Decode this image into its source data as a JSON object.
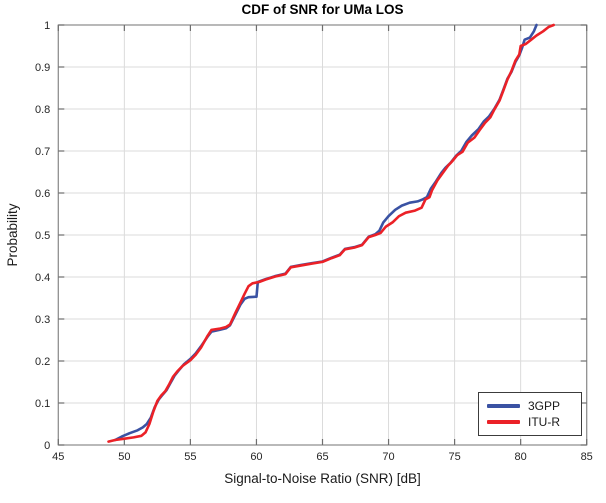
{
  "chart_data": {
    "type": "line",
    "title": "CDF of SNR for UMa LOS",
    "xlabel": "Signal-to-Noise Ratio (SNR) [dB]",
    "ylabel": "Probability",
    "xlim": [
      45,
      85
    ],
    "ylim": [
      0,
      1
    ],
    "xticks": [
      45,
      50,
      55,
      60,
      65,
      70,
      75,
      80,
      85
    ],
    "xtick_labels": [
      "45",
      "50",
      "55",
      "60",
      "65",
      "70",
      "75",
      "80",
      "85"
    ],
    "yticks": [
      0,
      0.1,
      0.2,
      0.3,
      0.4,
      0.5,
      0.6,
      0.7,
      0.8,
      0.9,
      1
    ],
    "ytick_labels": [
      "0",
      "0.1",
      "0.2",
      "0.3",
      "0.4",
      "0.5",
      "0.6",
      "0.7",
      "0.8",
      "0.9",
      "1"
    ],
    "grid": true,
    "legend_position": "bottom-right",
    "colors": {
      "grid": "#dbdbdb",
      "axis_box": "#8a8a8a",
      "tick_mark": "#6e6e6e",
      "tick_label": "#262626",
      "series_3gpp": "#3a52a3",
      "series_itur": "#eb2127"
    },
    "series": [
      {
        "name": "3GPP",
        "color": "#3a52a3",
        "points": [
          [
            49.3,
            0.012
          ],
          [
            49.8,
            0.02
          ],
          [
            50.4,
            0.028
          ],
          [
            51.0,
            0.035
          ],
          [
            51.4,
            0.042
          ],
          [
            51.7,
            0.05
          ],
          [
            52.0,
            0.065
          ],
          [
            52.3,
            0.09
          ],
          [
            52.6,
            0.108
          ],
          [
            52.9,
            0.12
          ],
          [
            53.2,
            0.131
          ],
          [
            53.5,
            0.148
          ],
          [
            53.8,
            0.165
          ],
          [
            54.1,
            0.177
          ],
          [
            54.5,
            0.192
          ],
          [
            55.0,
            0.205
          ],
          [
            55.4,
            0.218
          ],
          [
            55.8,
            0.235
          ],
          [
            56.3,
            0.258
          ],
          [
            56.6,
            0.27
          ],
          [
            57.2,
            0.274
          ],
          [
            57.7,
            0.278
          ],
          [
            58.0,
            0.285
          ],
          [
            58.4,
            0.31
          ],
          [
            58.8,
            0.335
          ],
          [
            59.1,
            0.348
          ],
          [
            59.4,
            0.352
          ],
          [
            60.0,
            0.353
          ],
          [
            60.1,
            0.388
          ],
          [
            60.7,
            0.395
          ],
          [
            61.4,
            0.402
          ],
          [
            62.2,
            0.408
          ],
          [
            62.6,
            0.424
          ],
          [
            63.3,
            0.428
          ],
          [
            64.2,
            0.433
          ],
          [
            65.0,
            0.437
          ],
          [
            65.7,
            0.446
          ],
          [
            66.3,
            0.453
          ],
          [
            66.7,
            0.467
          ],
          [
            67.4,
            0.471
          ],
          [
            68.0,
            0.477
          ],
          [
            68.5,
            0.496
          ],
          [
            69.0,
            0.502
          ],
          [
            69.3,
            0.51
          ],
          [
            69.6,
            0.53
          ],
          [
            70.0,
            0.545
          ],
          [
            70.5,
            0.56
          ],
          [
            71.0,
            0.57
          ],
          [
            71.6,
            0.577
          ],
          [
            72.2,
            0.58
          ],
          [
            72.6,
            0.585
          ],
          [
            72.9,
            0.59
          ],
          [
            73.2,
            0.61
          ],
          [
            73.6,
            0.628
          ],
          [
            74.0,
            0.648
          ],
          [
            74.3,
            0.66
          ],
          [
            74.7,
            0.672
          ],
          [
            75.1,
            0.688
          ],
          [
            75.5,
            0.7
          ],
          [
            75.9,
            0.722
          ],
          [
            76.3,
            0.737
          ],
          [
            76.8,
            0.752
          ],
          [
            77.2,
            0.77
          ],
          [
            77.6,
            0.782
          ],
          [
            78.0,
            0.8
          ],
          [
            78.4,
            0.822
          ],
          [
            78.7,
            0.847
          ],
          [
            79.0,
            0.872
          ],
          [
            79.3,
            0.888
          ],
          [
            79.6,
            0.912
          ],
          [
            79.9,
            0.928
          ],
          [
            80.1,
            0.945
          ],
          [
            80.3,
            0.965
          ],
          [
            80.7,
            0.97
          ],
          [
            81.0,
            0.985
          ],
          [
            81.2,
            1.0
          ]
        ]
      },
      {
        "name": "ITU-R",
        "color": "#eb2127",
        "points": [
          [
            48.8,
            0.008
          ],
          [
            49.3,
            0.012
          ],
          [
            50.0,
            0.015
          ],
          [
            50.7,
            0.018
          ],
          [
            51.3,
            0.022
          ],
          [
            51.6,
            0.03
          ],
          [
            51.9,
            0.05
          ],
          [
            52.2,
            0.08
          ],
          [
            52.5,
            0.105
          ],
          [
            52.8,
            0.118
          ],
          [
            53.1,
            0.128
          ],
          [
            53.4,
            0.145
          ],
          [
            53.7,
            0.163
          ],
          [
            54.0,
            0.175
          ],
          [
            54.4,
            0.188
          ],
          [
            55.0,
            0.202
          ],
          [
            55.4,
            0.215
          ],
          [
            55.8,
            0.232
          ],
          [
            56.3,
            0.26
          ],
          [
            56.6,
            0.274
          ],
          [
            57.2,
            0.277
          ],
          [
            57.7,
            0.281
          ],
          [
            58.0,
            0.287
          ],
          [
            58.4,
            0.314
          ],
          [
            58.8,
            0.34
          ],
          [
            59.1,
            0.36
          ],
          [
            59.4,
            0.378
          ],
          [
            59.7,
            0.385
          ],
          [
            60.2,
            0.388
          ],
          [
            60.7,
            0.394
          ],
          [
            61.4,
            0.401
          ],
          [
            62.2,
            0.407
          ],
          [
            62.6,
            0.423
          ],
          [
            63.3,
            0.427
          ],
          [
            64.2,
            0.432
          ],
          [
            65.0,
            0.436
          ],
          [
            65.7,
            0.445
          ],
          [
            66.3,
            0.452
          ],
          [
            66.7,
            0.466
          ],
          [
            67.4,
            0.47
          ],
          [
            68.0,
            0.476
          ],
          [
            68.5,
            0.495
          ],
          [
            69.0,
            0.5
          ],
          [
            69.4,
            0.505
          ],
          [
            69.8,
            0.52
          ],
          [
            70.3,
            0.53
          ],
          [
            70.8,
            0.545
          ],
          [
            71.3,
            0.553
          ],
          [
            72.0,
            0.558
          ],
          [
            72.5,
            0.565
          ],
          [
            72.8,
            0.585
          ],
          [
            73.1,
            0.59
          ],
          [
            73.3,
            0.607
          ],
          [
            73.7,
            0.63
          ],
          [
            74.0,
            0.643
          ],
          [
            74.5,
            0.665
          ],
          [
            74.8,
            0.675
          ],
          [
            75.2,
            0.69
          ],
          [
            75.6,
            0.698
          ],
          [
            76.0,
            0.72
          ],
          [
            76.5,
            0.732
          ],
          [
            76.9,
            0.75
          ],
          [
            77.3,
            0.767
          ],
          [
            77.7,
            0.78
          ],
          [
            78.0,
            0.798
          ],
          [
            78.4,
            0.82
          ],
          [
            78.7,
            0.845
          ],
          [
            79.0,
            0.87
          ],
          [
            79.3,
            0.89
          ],
          [
            79.6,
            0.915
          ],
          [
            79.9,
            0.93
          ],
          [
            80.0,
            0.95
          ],
          [
            80.4,
            0.955
          ],
          [
            80.8,
            0.965
          ],
          [
            81.2,
            0.975
          ],
          [
            81.7,
            0.985
          ],
          [
            82.1,
            0.995
          ],
          [
            82.5,
            1.0
          ]
        ]
      }
    ]
  }
}
